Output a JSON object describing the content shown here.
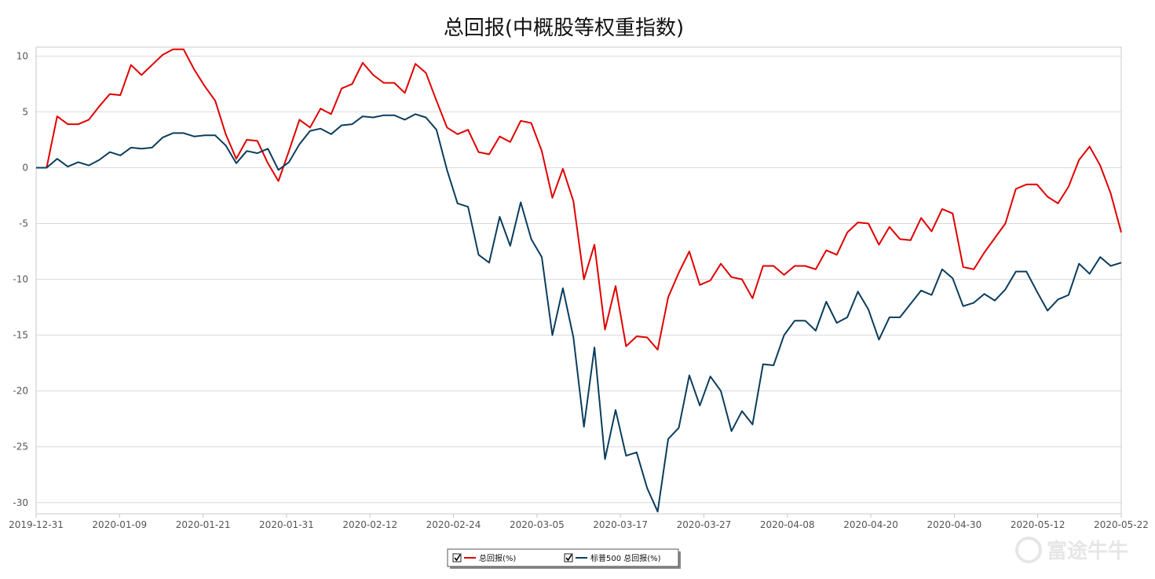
{
  "chart_data": {
    "type": "line",
    "title": "总回报(中概股等权重指数)",
    "xlabel": "",
    "ylabel": "",
    "ylim": [
      -31,
      10.8
    ],
    "yticks": [
      10,
      5,
      0,
      -5,
      -10,
      -15,
      -20,
      -25,
      -30
    ],
    "xtick_labels": [
      "2019-12-31",
      "2020-01-09",
      "2020-01-21",
      "2020-01-31",
      "2020-02-12",
      "2020-02-24",
      "2020-03-05",
      "2020-03-17",
      "2020-03-27",
      "2020-04-08",
      "2020-04-20",
      "2020-04-30",
      "2020-05-12",
      "2020-05-22"
    ],
    "grid": true,
    "legend_position": "bottom-center",
    "series": [
      {
        "name": "总回报(%)",
        "color": "#e00000",
        "values": [
          0,
          0,
          4.6,
          3.9,
          3.9,
          4.3,
          5.5,
          6.6,
          6.5,
          9.2,
          8.3,
          9.2,
          10.1,
          10.6,
          10.6,
          8.8,
          7.3,
          6.0,
          3.0,
          0.8,
          2.5,
          2.4,
          0.4,
          -1.2,
          1.5,
          4.3,
          3.6,
          5.3,
          4.8,
          7.1,
          7.5,
          9.4,
          8.3,
          7.6,
          7.6,
          6.7,
          9.3,
          8.5,
          6.0,
          3.6,
          3.0,
          3.4,
          1.4,
          1.2,
          2.8,
          2.3,
          4.2,
          4.0,
          1.5,
          -2.7,
          -0.1,
          -3.0,
          -10.0,
          -6.9,
          -14.5,
          -10.6,
          -16.0,
          -15.1,
          -15.2,
          -16.3,
          -11.6,
          -9.4,
          -7.5,
          -10.5,
          -10.1,
          -8.6,
          -9.8,
          -10.0,
          -11.7,
          -8.8,
          -8.8,
          -9.6,
          -8.8,
          -8.8,
          -9.1,
          -7.4,
          -7.8,
          -5.8,
          -4.9,
          -5.0,
          -6.9,
          -5.3,
          -6.4,
          -6.5,
          -4.5,
          -5.7,
          -3.7,
          -4.1,
          -8.9,
          -9.1,
          -7.6,
          -6.3,
          -5.0,
          -1.9,
          -1.5,
          -1.5,
          -2.6,
          -3.2,
          -1.7,
          0.7,
          1.9,
          0.2,
          -2.3,
          -5.8
        ]
      },
      {
        "name": "标普500 总回报(%)",
        "color": "#0b3d5e",
        "values": [
          0,
          0,
          0.8,
          0.1,
          0.5,
          0.2,
          0.7,
          1.4,
          1.1,
          1.8,
          1.7,
          1.8,
          2.7,
          3.1,
          3.1,
          2.8,
          2.9,
          2.9,
          2.0,
          0.4,
          1.5,
          1.3,
          1.7,
          -0.2,
          0.5,
          2.1,
          3.3,
          3.5,
          3.0,
          3.8,
          3.9,
          4.6,
          4.5,
          4.7,
          4.7,
          4.3,
          4.8,
          4.5,
          3.4,
          -0.2,
          -3.2,
          -3.5,
          -7.8,
          -8.5,
          -4.4,
          -7.0,
          -3.1,
          -6.4,
          -8.0,
          -15.0,
          -10.8,
          -15.2,
          -23.2,
          -16.1,
          -26.1,
          -21.7,
          -25.8,
          -25.5,
          -28.7,
          -30.8,
          -24.3,
          -23.3,
          -18.6,
          -21.3,
          -18.7,
          -20.0,
          -23.6,
          -21.8,
          -23.0,
          -17.6,
          -17.7,
          -15.0,
          -13.7,
          -13.7,
          -14.6,
          -12.0,
          -13.9,
          -13.4,
          -11.1,
          -12.7,
          -15.4,
          -13.4,
          -13.4,
          -12.2,
          -11.0,
          -11.4,
          -9.1,
          -9.9,
          -12.4,
          -12.1,
          -11.3,
          -11.9,
          -10.9,
          -9.3,
          -9.3,
          -11.1,
          -12.8,
          -11.8,
          -11.4,
          -8.6,
          -9.5,
          -8.0,
          -8.8,
          -8.5
        ]
      }
    ]
  },
  "watermark": {
    "text": "富途牛牛"
  }
}
